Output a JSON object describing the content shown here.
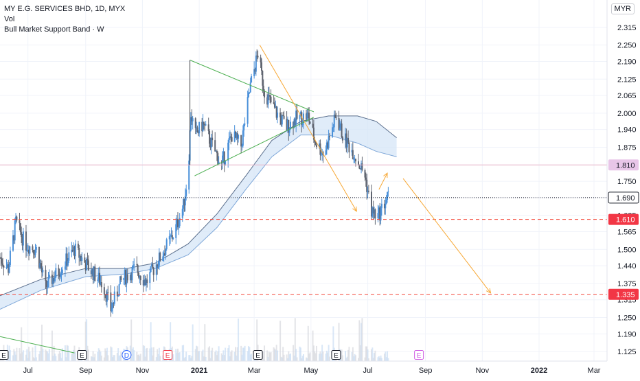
{
  "legend": {
    "title": "MY E.G. SERVICES BHD, 1D, MYX",
    "vol": "Vol",
    "indicator": "Bull Market Support Band · W"
  },
  "currency": "MYR",
  "colors": {
    "up": "#4a90d9",
    "down": "#5f6470",
    "triangle": "#4caf50",
    "arrows": "#f7a733",
    "support": "#f44336",
    "band_fill": "#d6e6f7",
    "band_line": "#5a6e8c",
    "tag_red": "#f23645",
    "tag_pink_bg": "#e8c6e8",
    "current_price": "#131722"
  },
  "chart_data": {
    "type": "candlestick",
    "ylim": [
      1.09,
      2.36
    ],
    "y_ticks": [
      "2.315",
      "2.250",
      "2.190",
      "2.125",
      "2.065",
      "2.000",
      "1.940",
      "1.875",
      "1.810",
      "1.750",
      "1.690",
      "1.625",
      "1.565",
      "1.500",
      "1.440",
      "1.375",
      "1.315",
      "1.250",
      "1.190",
      "1.125"
    ],
    "x_ticks": [
      "Jul",
      "Sep",
      "Nov",
      "2021",
      "Mar",
      "May",
      "Jul",
      "Sep",
      "Nov",
      "2022",
      "Mar"
    ],
    "x_tick_dates": [
      "2020-07-01",
      "2020-09-01",
      "2020-11-01",
      "2021-01-01",
      "2021-03-01",
      "2021-05-01",
      "2021-07-01",
      "2021-09-01",
      "2021-11-01",
      "2022-01-01",
      "2022-03-01"
    ],
    "x_range": [
      "2020-06-01",
      "2022-03-15"
    ],
    "price_path": [
      [
        "2020-06-01",
        1.47
      ],
      [
        "2020-06-10",
        1.43
      ],
      [
        "2020-06-18",
        1.6
      ],
      [
        "2020-06-28",
        1.52
      ],
      [
        "2020-07-10",
        1.5
      ],
      [
        "2020-07-20",
        1.36
      ],
      [
        "2020-08-05",
        1.43
      ],
      [
        "2020-08-20",
        1.5
      ],
      [
        "2020-09-05",
        1.43
      ],
      [
        "2020-09-20",
        1.37
      ],
      [
        "2020-09-28",
        1.28
      ],
      [
        "2020-10-10",
        1.39
      ],
      [
        "2020-10-25",
        1.43
      ],
      [
        "2020-11-05",
        1.38
      ],
      [
        "2020-11-20",
        1.47
      ],
      [
        "2020-12-05",
        1.56
      ],
      [
        "2020-12-15",
        1.66
      ],
      [
        "2020-12-20",
        1.78
      ],
      [
        "2020-12-23",
        2.0
      ],
      [
        "2020-12-28",
        1.92
      ],
      [
        "2021-01-05",
        1.96
      ],
      [
        "2021-01-15",
        1.88
      ],
      [
        "2021-01-25",
        1.81
      ],
      [
        "2021-02-05",
        1.92
      ],
      [
        "2021-02-15",
        1.88
      ],
      [
        "2021-02-25",
        2.1
      ],
      [
        "2021-03-05",
        2.22
      ],
      [
        "2021-03-12",
        2.08
      ],
      [
        "2021-03-25",
        2.0
      ],
      [
        "2021-04-05",
        1.95
      ],
      [
        "2021-04-15",
        1.98
      ],
      [
        "2021-04-28",
        1.99
      ],
      [
        "2021-05-05",
        1.9
      ],
      [
        "2021-05-15",
        1.85
      ],
      [
        "2021-05-28",
        1.99
      ],
      [
        "2021-06-05",
        1.91
      ],
      [
        "2021-06-15",
        1.86
      ],
      [
        "2021-06-28",
        1.77
      ],
      [
        "2021-07-05",
        1.64
      ],
      [
        "2021-07-12",
        1.62
      ],
      [
        "2021-07-22",
        1.69
      ]
    ],
    "candle_range": [
      "2020-06-01",
      "2021-07-24"
    ],
    "bull_market_support_band": {
      "upper": [
        [
          "2020-06-01",
          1.33
        ],
        [
          "2020-07-15",
          1.39
        ],
        [
          "2020-09-01",
          1.43
        ],
        [
          "2020-10-15",
          1.43
        ],
        [
          "2020-11-15",
          1.45
        ],
        [
          "2020-12-20",
          1.52
        ],
        [
          "2021-01-20",
          1.63
        ],
        [
          "2021-02-20",
          1.77
        ],
        [
          "2021-03-20",
          1.9
        ],
        [
          "2021-04-20",
          1.97
        ],
        [
          "2021-05-20",
          1.99
        ],
        [
          "2021-06-20",
          1.99
        ],
        [
          "2021-07-10",
          1.97
        ],
        [
          "2021-08-01",
          1.91
        ]
      ],
      "lower": [
        [
          "2020-06-01",
          1.28
        ],
        [
          "2020-07-15",
          1.35
        ],
        [
          "2020-09-01",
          1.4
        ],
        [
          "2020-10-15",
          1.41
        ],
        [
          "2020-11-15",
          1.43
        ],
        [
          "2020-12-20",
          1.48
        ],
        [
          "2021-01-20",
          1.58
        ],
        [
          "2021-02-20",
          1.72
        ],
        [
          "2021-03-20",
          1.84
        ],
        [
          "2021-04-20",
          1.92
        ],
        [
          "2021-05-20",
          1.92
        ],
        [
          "2021-06-20",
          1.89
        ],
        [
          "2021-07-10",
          1.86
        ],
        [
          "2021-08-01",
          1.84
        ]
      ]
    },
    "drawings": {
      "triangle": [
        {
          "from": [
            "2020-12-22",
            2.195
          ],
          "to": [
            "2021-05-04",
            2.005
          ]
        },
        {
          "from": [
            "2020-12-27",
            1.77
          ],
          "to": [
            "2021-05-04",
            1.985
          ]
        },
        {
          "from": [
            "2020-12-22",
            2.195
          ],
          "to": [
            "2020-12-22",
            1.81
          ]
        }
      ],
      "orange_arrows": [
        {
          "from": [
            "2021-03-07",
            2.25
          ],
          "to": [
            "2021-06-19",
            1.64
          ]
        },
        {
          "from": [
            "2021-07-13",
            1.72
          ],
          "to": [
            "2021-07-22",
            1.78
          ]
        },
        {
          "from": [
            "2021-08-08",
            1.76
          ],
          "to": [
            "2021-11-10",
            1.34
          ]
        }
      ],
      "bottom_left_line": {
        "from": [
          "2020-06-01",
          1.18
        ],
        "to": [
          "2020-08-20",
          1.12
        ]
      },
      "support_lines": [
        1.61,
        1.335
      ],
      "resistance_line": 1.81,
      "current_price_line": 1.69
    },
    "price_tags": [
      {
        "value": "1.810",
        "style": "pink"
      },
      {
        "value": "1.690",
        "style": "dark"
      },
      {
        "value": "1.610",
        "style": "red"
      },
      {
        "value": "1.335",
        "style": "red"
      }
    ],
    "events": [
      {
        "date": "2020-06-05",
        "label": "E",
        "color": "#131722"
      },
      {
        "date": "2020-08-28",
        "label": "E",
        "color": "#131722"
      },
      {
        "date": "2020-10-15",
        "label": "D",
        "color": "#2962ff"
      },
      {
        "date": "2020-11-28",
        "label": "E",
        "color": "#f23645"
      },
      {
        "date": "2021-03-05",
        "label": "E",
        "color": "#131722"
      },
      {
        "date": "2021-05-28",
        "label": "E",
        "color": "#131722"
      },
      {
        "date": "2021-08-25",
        "label": "E",
        "color": "#d05ce3"
      }
    ]
  }
}
